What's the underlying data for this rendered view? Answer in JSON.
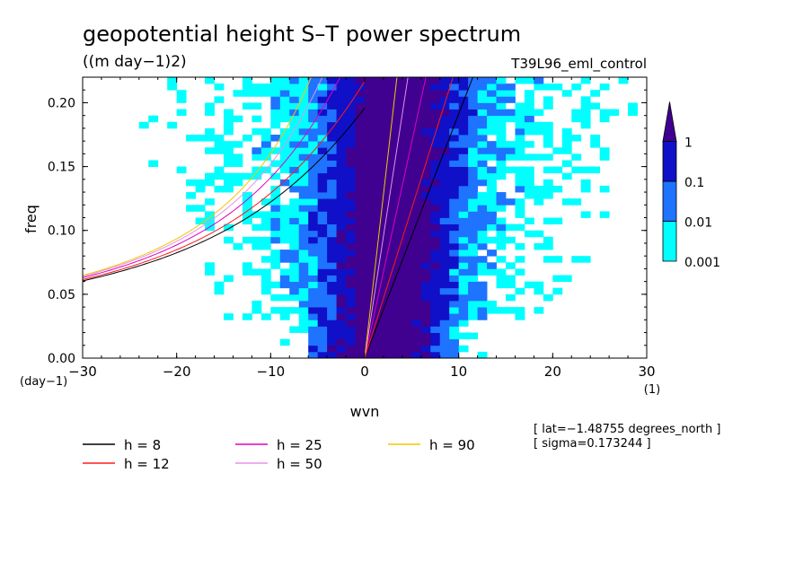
{
  "chart_data": {
    "type": "heatmap",
    "title": "geopotential height S–T power spectrum",
    "subtitle": "((m day−1)2)",
    "run_label": "T39L96_eml_control",
    "xlabel": "wvn",
    "ylabel": "freq",
    "x_unit": "(1)",
    "y_unit": "(day−1)",
    "xlim": [
      -30,
      30
    ],
    "ylim": [
      0.0,
      0.22
    ],
    "x_ticks": [
      -30,
      -20,
      -10,
      0,
      10,
      20,
      30
    ],
    "x_tick_labels": [
      "−30",
      "−20",
      "−10",
      "0",
      "10",
      "20",
      "30"
    ],
    "y_ticks": [
      0.0,
      0.05,
      0.1,
      0.15,
      0.2
    ],
    "y_tick_labels": [
      "0.00",
      "0.05",
      "0.10",
      "0.15",
      "0.20"
    ],
    "colorbar": {
      "levels": [
        "0.001",
        "0.01",
        "0.1",
        "1"
      ],
      "colors": [
        "#00ffff",
        "#1e73ff",
        "#1010c8",
        "#400090"
      ]
    },
    "dispersion_curves": [
      {
        "name": "h = 8",
        "h": 8,
        "color": "#000000"
      },
      {
        "name": "h = 12",
        "h": 12,
        "color": "#ff1a1a"
      },
      {
        "name": "h = 25",
        "h": 25,
        "color": "#e000c0"
      },
      {
        "name": "h = 50",
        "h": 50,
        "color": "#e890e8"
      },
      {
        "name": "h = 90",
        "h": 90,
        "color": "#f0c800"
      }
    ],
    "annotations": [
      "[ lat=−1.48755 degrees_north ]",
      "[ sigma=0.173244 ]"
    ]
  }
}
